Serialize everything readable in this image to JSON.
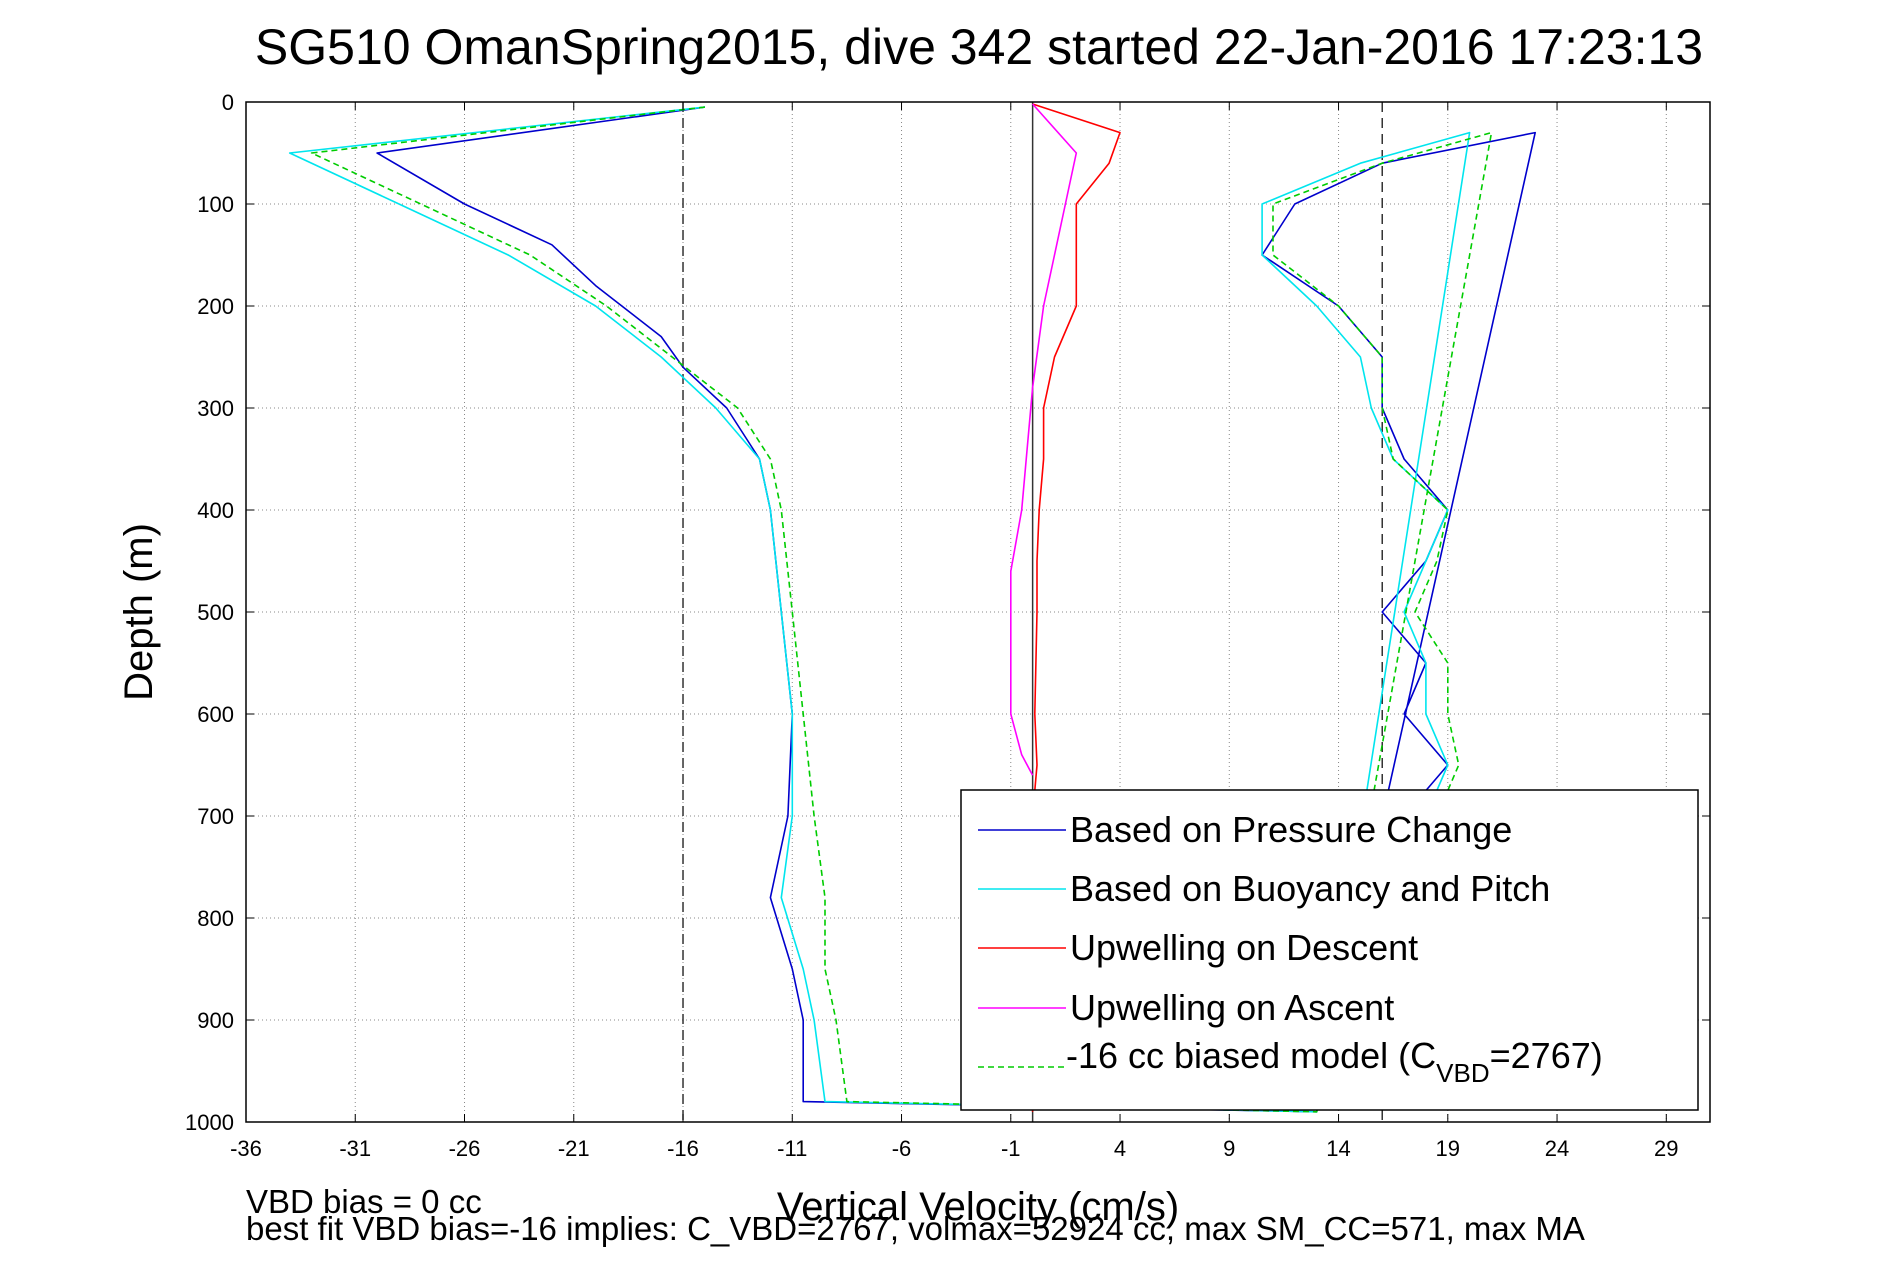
{
  "chart_data": {
    "type": "line",
    "title": "SG510 OmanSpring2015, dive 342 started 22-Jan-2016 17:23:13",
    "xlabel": "Vertical Velocity (cm/s)",
    "ylabel": "Depth (m)",
    "xlim": [
      -36,
      31
    ],
    "ylim": [
      0,
      1000
    ],
    "y_reversed": true,
    "grid": true,
    "legend_position": "bottom-right",
    "x_ticks": [
      "-36",
      "-31",
      "-26",
      "-21",
      "-16",
      "-11",
      "-6",
      "-1",
      "4",
      "9",
      "14",
      "19",
      "24",
      "29"
    ],
    "y_ticks": [
      "0",
      "100",
      "200",
      "300",
      "400",
      "500",
      "600",
      "700",
      "800",
      "900",
      "1000"
    ],
    "reference_lines": [
      {
        "x": -16,
        "style": "dashed"
      },
      {
        "x": 0,
        "style": "solid"
      },
      {
        "x": 16,
        "style": "dashed"
      }
    ],
    "legend": [
      "Based on Pressure Change",
      "Based on Buoyancy and Pitch",
      "Upwelling on Descent",
      "Upwelling on Ascent"
    ],
    "legend_model": {
      "prefix": "-16 cc biased model (C",
      "subscript": "VBD",
      "suffix": "=2767)"
    },
    "series": [
      {
        "name": "Based on Pressure Change",
        "color": "#0000cc",
        "points": [
          [
            -15,
            5
          ],
          [
            -30,
            50
          ],
          [
            -26,
            100
          ],
          [
            -22,
            140
          ],
          [
            -20,
            180
          ],
          [
            -17,
            230
          ],
          [
            -16,
            260
          ],
          [
            -14,
            300
          ],
          [
            -12.5,
            350
          ],
          [
            -12,
            400
          ],
          [
            -11.5,
            500
          ],
          [
            -11,
            600
          ],
          [
            -11.2,
            700
          ],
          [
            -12,
            780
          ],
          [
            -11,
            850
          ],
          [
            -10.5,
            900
          ],
          [
            -10.5,
            980
          ],
          [
            13,
            990
          ],
          [
            23,
            30
          ],
          [
            16,
            60
          ],
          [
            12,
            100
          ],
          [
            10.5,
            150
          ],
          [
            14,
            200
          ],
          [
            16,
            250
          ],
          [
            16,
            300
          ],
          [
            17,
            350
          ],
          [
            19,
            400
          ],
          [
            18,
            450
          ],
          [
            16,
            500
          ],
          [
            18,
            550
          ],
          [
            17,
            600
          ],
          [
            19,
            650
          ],
          [
            17,
            700
          ],
          [
            18,
            800
          ],
          [
            17,
            900
          ],
          [
            16,
            985
          ]
        ]
      },
      {
        "name": "Based on Buoyancy and Pitch",
        "color": "#00e5ee",
        "points": [
          [
            -15,
            5
          ],
          [
            -34,
            50
          ],
          [
            -29,
            100
          ],
          [
            -24,
            150
          ],
          [
            -20,
            200
          ],
          [
            -17,
            250
          ],
          [
            -14.5,
            300
          ],
          [
            -12.5,
            350
          ],
          [
            -12,
            400
          ],
          [
            -11.5,
            500
          ],
          [
            -11,
            600
          ],
          [
            -11,
            700
          ],
          [
            -11.5,
            780
          ],
          [
            -10.5,
            850
          ],
          [
            -10,
            900
          ],
          [
            -9.5,
            980
          ],
          [
            13,
            990
          ],
          [
            20,
            30
          ],
          [
            15,
            60
          ],
          [
            10.5,
            100
          ],
          [
            10.5,
            150
          ],
          [
            13,
            200
          ],
          [
            15,
            250
          ],
          [
            15.5,
            300
          ],
          [
            16.5,
            350
          ],
          [
            19,
            400
          ],
          [
            18,
            450
          ],
          [
            17,
            500
          ],
          [
            18,
            550
          ],
          [
            18,
            600
          ],
          [
            19,
            650
          ],
          [
            18,
            700
          ],
          [
            18,
            800
          ],
          [
            17.5,
            900
          ],
          [
            16.5,
            985
          ]
        ]
      },
      {
        "name": "Upwelling on Descent",
        "color": "#ff0000",
        "points": [
          [
            0,
            2
          ],
          [
            4,
            30
          ],
          [
            3.5,
            60
          ],
          [
            2,
            100
          ],
          [
            2,
            150
          ],
          [
            2,
            200
          ],
          [
            1,
            250
          ],
          [
            0.5,
            300
          ],
          [
            0.5,
            350
          ],
          [
            0.3,
            400
          ],
          [
            0.2,
            450
          ],
          [
            0.2,
            500
          ],
          [
            0.1,
            600
          ],
          [
            0.2,
            650
          ],
          [
            0,
            700
          ],
          [
            0,
            800
          ],
          [
            0,
            900
          ],
          [
            0,
            990
          ]
        ]
      },
      {
        "name": "Upwelling on Ascent",
        "color": "#ff00ff",
        "points": [
          [
            0,
            2
          ],
          [
            2,
            50
          ],
          [
            1.5,
            100
          ],
          [
            1,
            150
          ],
          [
            0.5,
            200
          ],
          [
            0,
            280
          ],
          [
            -0.5,
            400
          ],
          [
            -1,
            460
          ],
          [
            -1,
            500
          ],
          [
            -1,
            560
          ],
          [
            -1,
            600
          ],
          [
            -0.5,
            640
          ],
          [
            0,
            660
          ]
        ]
      },
      {
        "name": "-16 cc biased model (C_VBD=2767)",
        "color": "#00cc00",
        "dashed": true,
        "points": [
          [
            -15,
            5
          ],
          [
            -33,
            50
          ],
          [
            -28,
            100
          ],
          [
            -23,
            150
          ],
          [
            -19.5,
            200
          ],
          [
            -16.5,
            250
          ],
          [
            -13.5,
            300
          ],
          [
            -12,
            350
          ],
          [
            -11.5,
            400
          ],
          [
            -11,
            500
          ],
          [
            -10.5,
            600
          ],
          [
            -10,
            700
          ],
          [
            -9.5,
            780
          ],
          [
            -9.5,
            850
          ],
          [
            -9,
            900
          ],
          [
            -8.5,
            980
          ],
          [
            13,
            990
          ],
          [
            21,
            30
          ],
          [
            16,
            60
          ],
          [
            11,
            100
          ],
          [
            11,
            150
          ],
          [
            14,
            200
          ],
          [
            16,
            250
          ],
          [
            16,
            300
          ],
          [
            16.5,
            350
          ],
          [
            19,
            400
          ],
          [
            18.5,
            450
          ],
          [
            17.5,
            500
          ],
          [
            19,
            550
          ],
          [
            19,
            600
          ],
          [
            19.5,
            650
          ],
          [
            18.5,
            700
          ],
          [
            19,
            800
          ],
          [
            18,
            900
          ],
          [
            17,
            985
          ]
        ]
      }
    ]
  },
  "footnotes": {
    "line1": "VBD bias = 0 cc",
    "line2": "best fit VBD bias=-16 implies: C_VBD=2767, volmax=52924 cc, max SM_CC=571, max MA"
  }
}
